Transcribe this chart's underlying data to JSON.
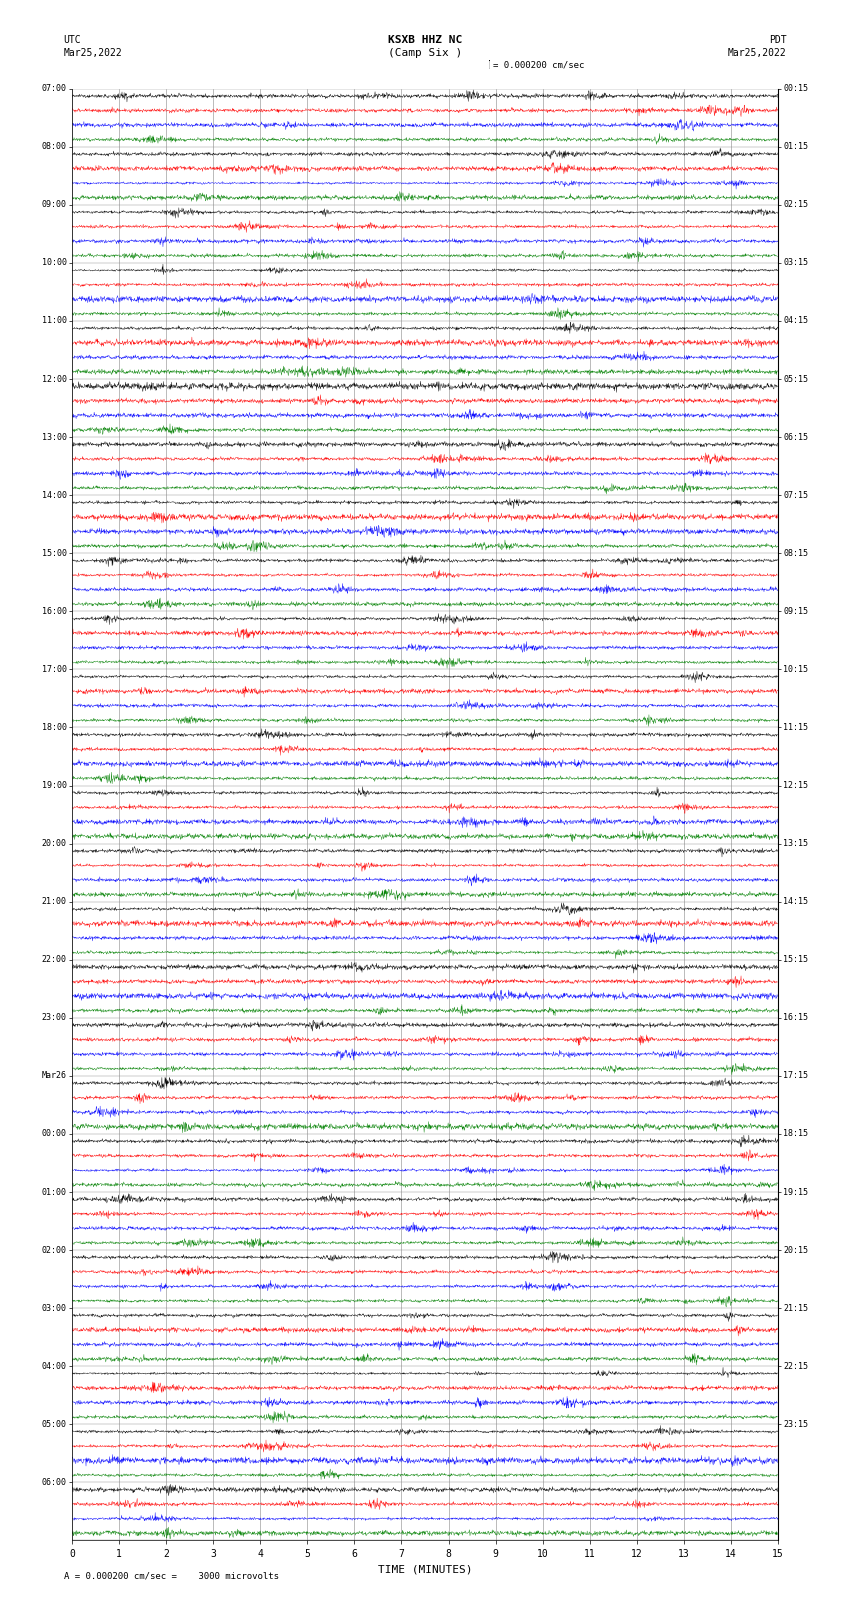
{
  "title": "KSXB HHZ NC",
  "subtitle": "(Camp Six )",
  "scale_label": "= 0.000200 cm/sec",
  "bottom_label": "A = 0.000200 cm/sec =    3000 microvolts",
  "xlabel": "TIME (MINUTES)",
  "colors": [
    "black",
    "red",
    "blue",
    "green"
  ],
  "left_labels": [
    "07:00",
    "08:00",
    "09:00",
    "10:00",
    "11:00",
    "12:00",
    "13:00",
    "14:00",
    "15:00",
    "16:00",
    "17:00",
    "18:00",
    "19:00",
    "20:00",
    "21:00",
    "22:00",
    "23:00",
    "Mar26",
    "00:00",
    "01:00",
    "02:00",
    "03:00",
    "04:00",
    "05:00",
    "06:00"
  ],
  "right_labels": [
    "00:15",
    "01:15",
    "02:15",
    "03:15",
    "04:15",
    "05:15",
    "06:15",
    "07:15",
    "08:15",
    "09:15",
    "10:15",
    "11:15",
    "12:15",
    "13:15",
    "14:15",
    "15:15",
    "16:15",
    "17:15",
    "18:15",
    "19:15",
    "20:15",
    "21:15",
    "22:15",
    "23:15"
  ],
  "n_hours": 25,
  "n_channels": 4,
  "bg_color": "white",
  "grid_color": "#888888",
  "fig_width": 8.5,
  "fig_height": 16.13,
  "dpi": 100,
  "x_min": 0,
  "x_max": 15,
  "x_ticks": [
    0,
    1,
    2,
    3,
    4,
    5,
    6,
    7,
    8,
    9,
    10,
    11,
    12,
    13,
    14,
    15
  ],
  "trace_amplitude": 0.42,
  "noise_scale": 0.1,
  "lw": 0.3
}
